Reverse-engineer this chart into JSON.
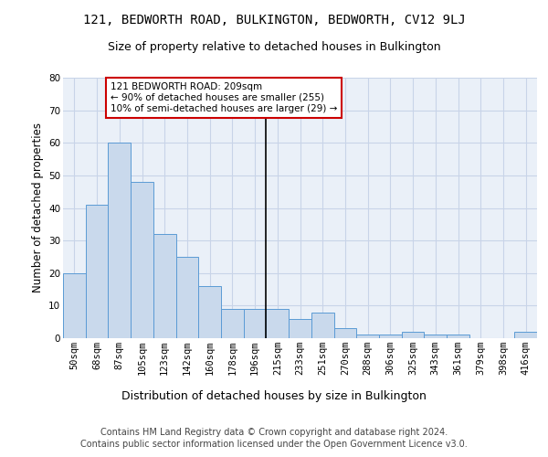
{
  "title": "121, BEDWORTH ROAD, BULKINGTON, BEDWORTH, CV12 9LJ",
  "subtitle": "Size of property relative to detached houses in Bulkington",
  "xlabel": "Distribution of detached houses by size in Bulkington",
  "ylabel": "Number of detached properties",
  "categories": [
    "50sqm",
    "68sqm",
    "87sqm",
    "105sqm",
    "123sqm",
    "142sqm",
    "160sqm",
    "178sqm",
    "196sqm",
    "215sqm",
    "233sqm",
    "251sqm",
    "270sqm",
    "288sqm",
    "306sqm",
    "325sqm",
    "343sqm",
    "361sqm",
    "379sqm",
    "398sqm",
    "416sqm"
  ],
  "values": [
    20,
    41,
    60,
    48,
    32,
    25,
    16,
    9,
    9,
    9,
    6,
    8,
    3,
    1,
    1,
    2,
    1,
    1,
    0,
    0,
    2
  ],
  "bar_color": "#c9d9ec",
  "bar_edge_color": "#5b9bd5",
  "grid_color": "#c8d4e8",
  "bg_color": "#eaf0f8",
  "vline_x": 8.5,
  "annotation_line1": "121 BEDWORTH ROAD: 209sqm",
  "annotation_line2": "← 90% of detached houses are smaller (255)",
  "annotation_line3": "10% of semi-detached houses are larger (29) →",
  "annotation_box_color": "#cc0000",
  "footer_line1": "Contains HM Land Registry data © Crown copyright and database right 2024.",
  "footer_line2": "Contains public sector information licensed under the Open Government Licence v3.0.",
  "ylim": [
    0,
    80
  ],
  "yticks": [
    0,
    10,
    20,
    30,
    40,
    50,
    60,
    70,
    80
  ],
  "title_fontsize": 10,
  "subtitle_fontsize": 9,
  "ylabel_fontsize": 8.5,
  "xlabel_fontsize": 9,
  "tick_fontsize": 7.5,
  "footer_fontsize": 7,
  "ann_fontsize": 7.5
}
